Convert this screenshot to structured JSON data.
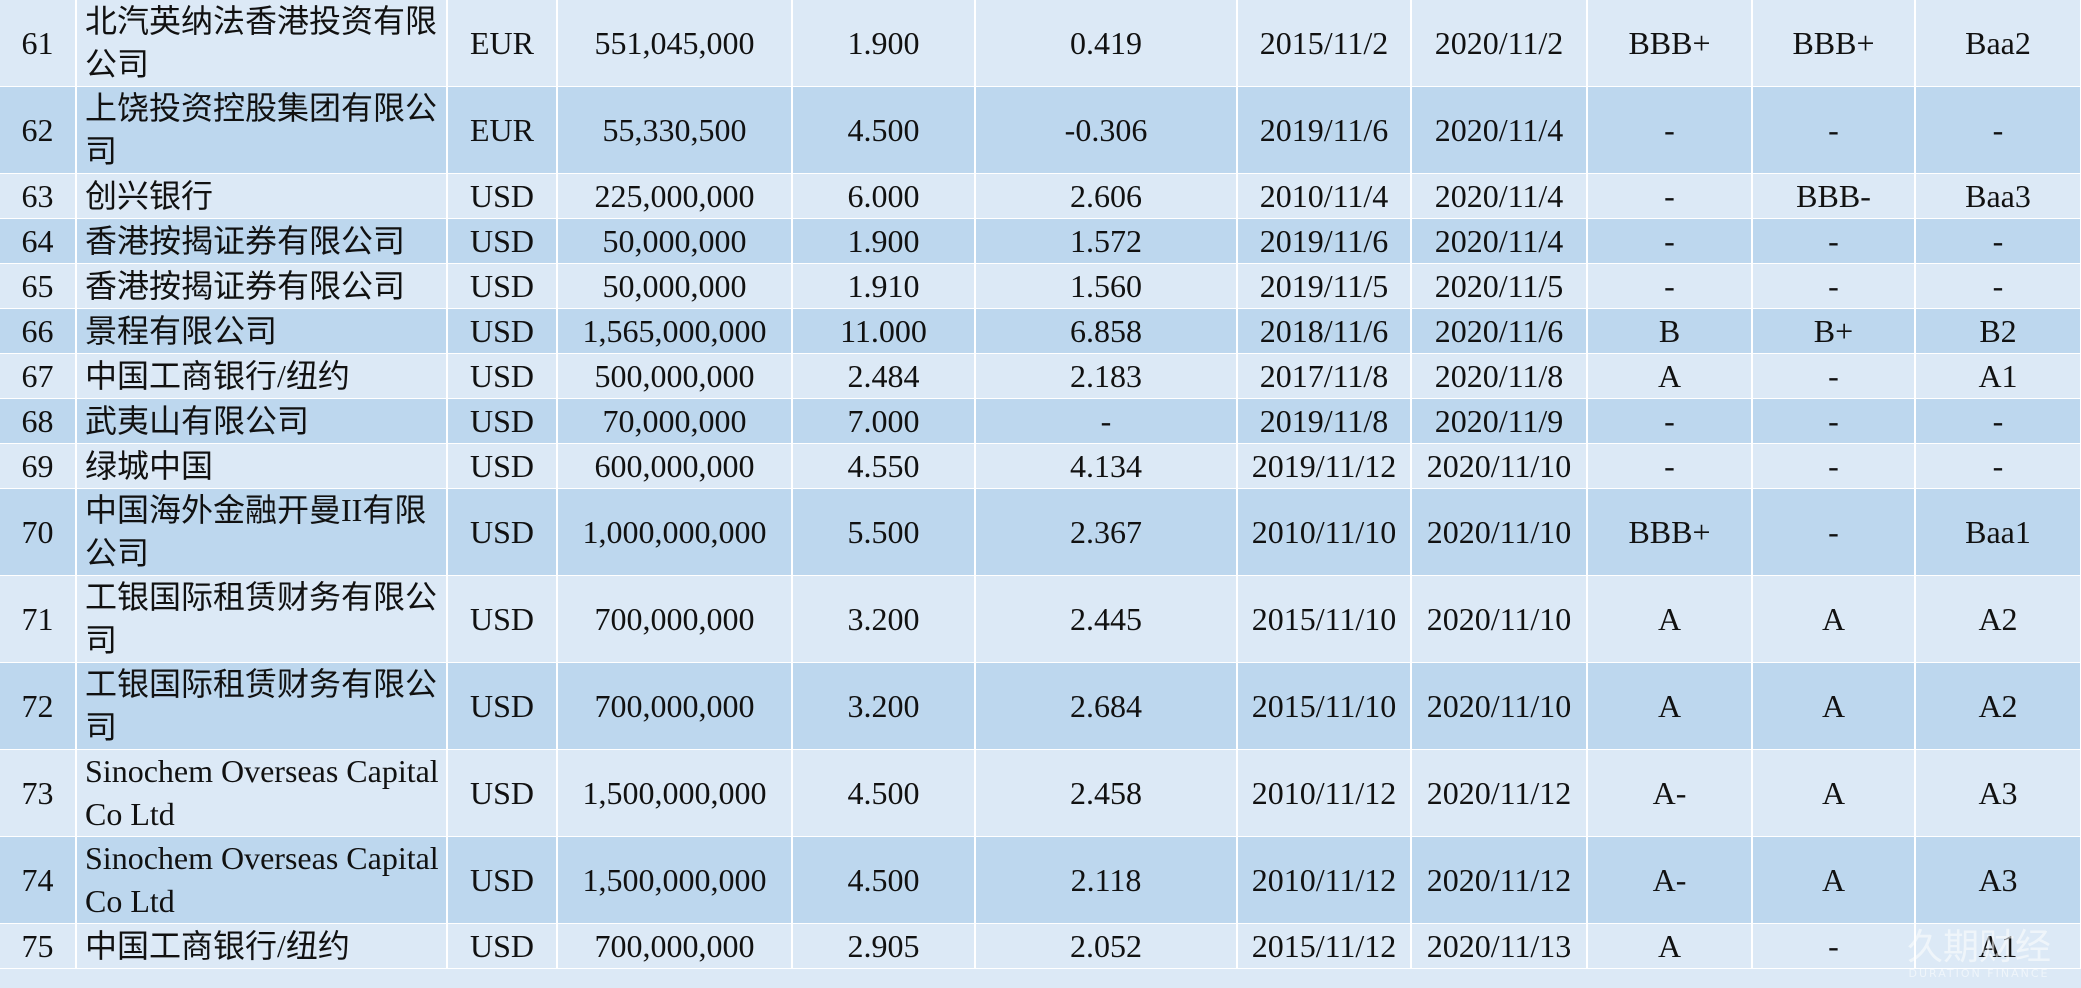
{
  "table": {
    "rows": [
      [
        "61",
        "北汽英纳法香港投资有限公司",
        "EUR",
        "551,045,000",
        "1.900",
        "0.419",
        "2015/11/2",
        "2020/11/2",
        "BBB+",
        "BBB+",
        "Baa2"
      ],
      [
        "62",
        "上饶投资控股集团有限公司",
        "EUR",
        "55,330,500",
        "4.500",
        "-0.306",
        "2019/11/6",
        "2020/11/4",
        "-",
        "-",
        "-"
      ],
      [
        "63",
        "创兴银行",
        "USD",
        "225,000,000",
        "6.000",
        "2.606",
        "2010/11/4",
        "2020/11/4",
        "-",
        "BBB-",
        "Baa3"
      ],
      [
        "64",
        "香港按揭证券有限公司",
        "USD",
        "50,000,000",
        "1.900",
        "1.572",
        "2019/11/6",
        "2020/11/4",
        "-",
        "-",
        "-"
      ],
      [
        "65",
        "香港按揭证券有限公司",
        "USD",
        "50,000,000",
        "1.910",
        "1.560",
        "2019/11/5",
        "2020/11/5",
        "-",
        "-",
        "-"
      ],
      [
        "66",
        "景程有限公司",
        "USD",
        "1,565,000,000",
        "11.000",
        "6.858",
        "2018/11/6",
        "2020/11/6",
        "B",
        "B+",
        "B2"
      ],
      [
        "67",
        "中国工商银行/纽约",
        "USD",
        "500,000,000",
        "2.484",
        "2.183",
        "2017/11/8",
        "2020/11/8",
        "A",
        "-",
        "A1"
      ],
      [
        "68",
        "武夷山有限公司",
        "USD",
        "70,000,000",
        "7.000",
        "-",
        "2019/11/8",
        "2020/11/9",
        "-",
        "-",
        "-"
      ],
      [
        "69",
        "绿城中国",
        "USD",
        "600,000,000",
        "4.550",
        "4.134",
        "2019/11/12",
        "2020/11/10",
        "-",
        "-",
        "-"
      ],
      [
        "70",
        "中国海外金融开曼II有限公司",
        "USD",
        "1,000,000,000",
        "5.500",
        "2.367",
        "2010/11/10",
        "2020/11/10",
        "BBB+",
        "-",
        "Baa1"
      ],
      [
        "71",
        "工银国际租赁财务有限公司",
        "USD",
        "700,000,000",
        "3.200",
        "2.445",
        "2015/11/10",
        "2020/11/10",
        "A",
        "A",
        "A2"
      ],
      [
        "72",
        "工银国际租赁财务有限公司",
        "USD",
        "700,000,000",
        "3.200",
        "2.684",
        "2015/11/10",
        "2020/11/10",
        "A",
        "A",
        "A2"
      ],
      [
        "73",
        "Sinochem Overseas Capital Co Ltd",
        "USD",
        "1,500,000,000",
        "4.500",
        "2.458",
        "2010/11/12",
        "2020/11/12",
        "A-",
        "A",
        "A3"
      ],
      [
        "74",
        "Sinochem Overseas Capital Co Ltd",
        "USD",
        "1,500,000,000",
        "4.500",
        "2.118",
        "2010/11/12",
        "2020/11/12",
        "A-",
        "A",
        "A3"
      ],
      [
        "75",
        "中国工商银行/纽约",
        "USD",
        "700,000,000",
        "2.905",
        "2.052",
        "2015/11/12",
        "2020/11/13",
        "A",
        "-",
        "A1"
      ]
    ]
  },
  "watermark": {
    "name": "久期财经",
    "subtitle": "DURATION FINANCE"
  }
}
